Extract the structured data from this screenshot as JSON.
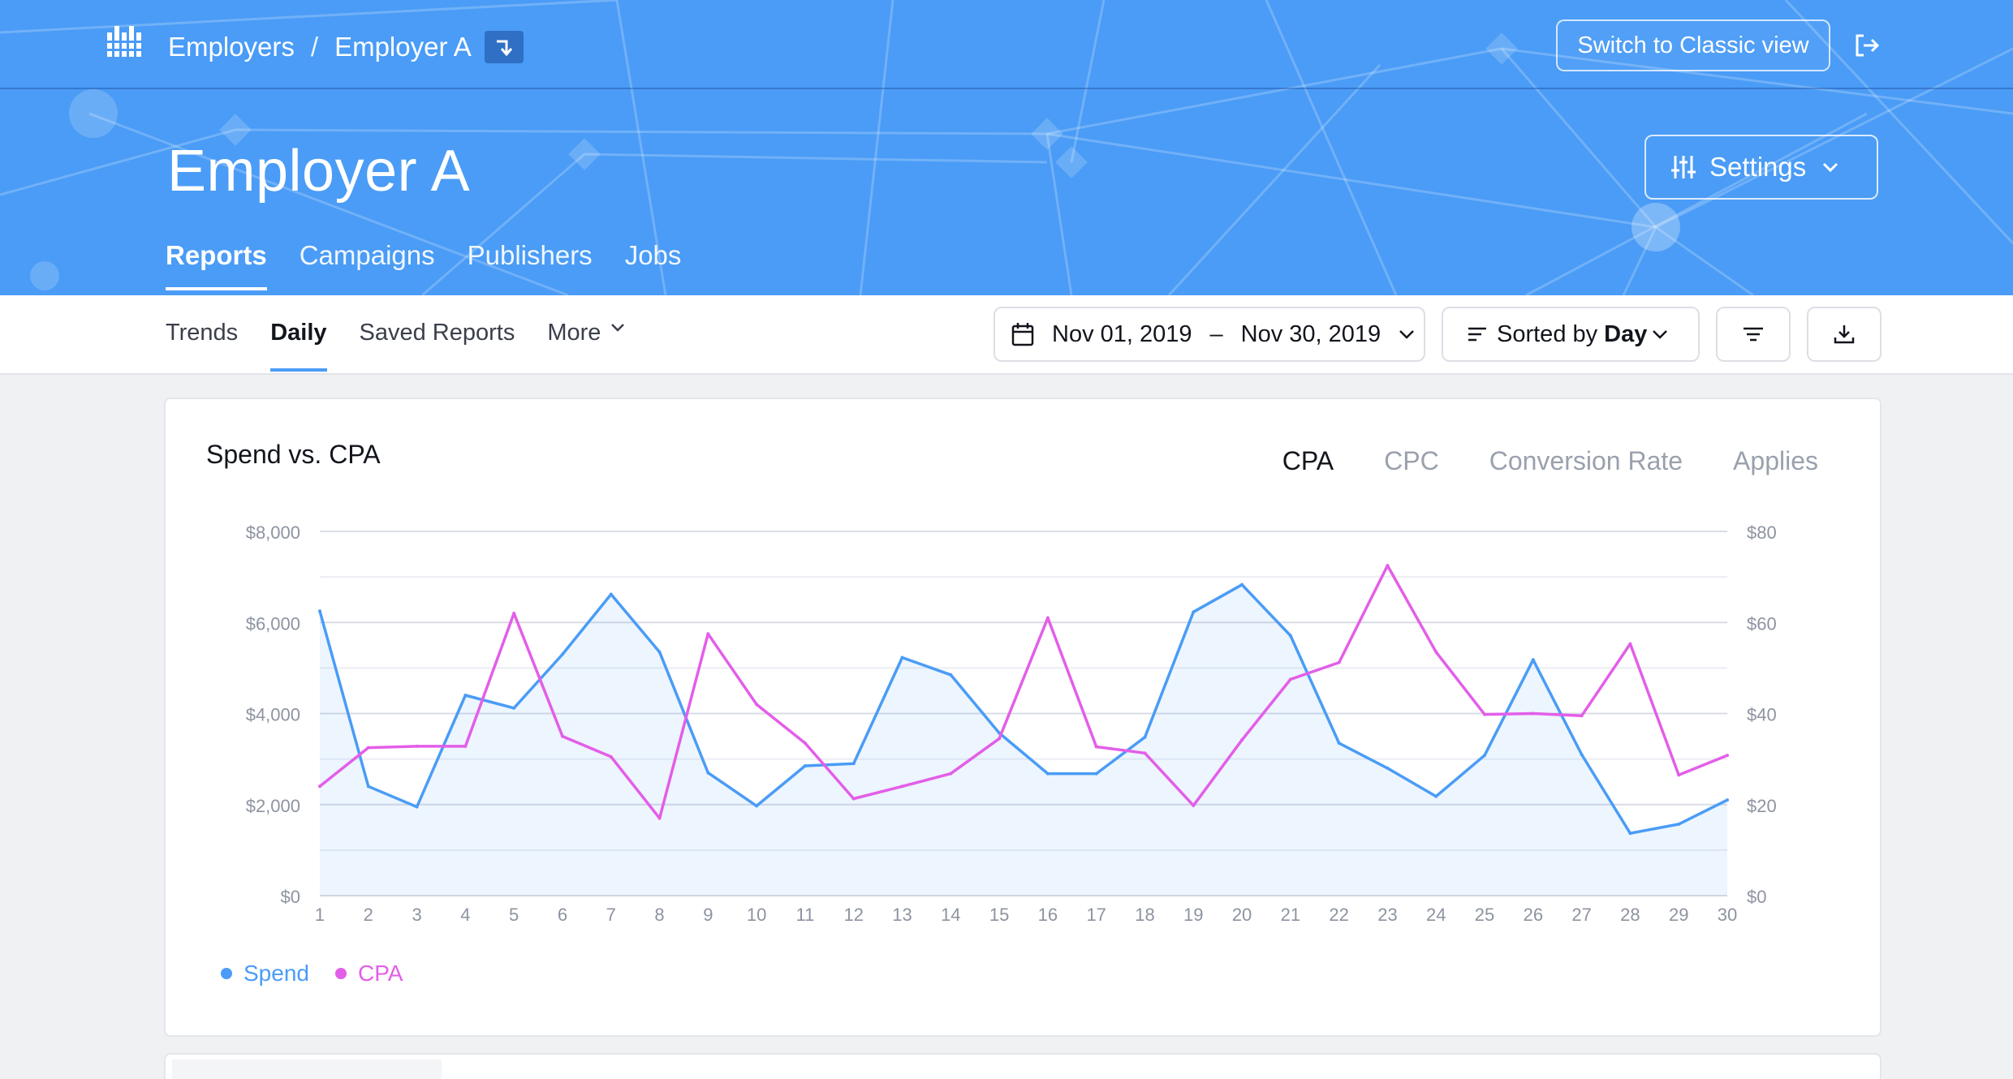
{
  "header": {
    "breadcrumbs": [
      "Employers",
      "Employer A"
    ],
    "breadcrumb_separator": "/",
    "switch_view_label": "Switch to Classic view",
    "page_title": "Employer A",
    "settings_label": "Settings",
    "nav_tabs": [
      {
        "label": "Reports",
        "active": true
      },
      {
        "label": "Campaigns",
        "active": false
      },
      {
        "label": "Publishers",
        "active": false
      },
      {
        "label": "Jobs",
        "active": false
      }
    ],
    "brand_color": "#4a9cf6"
  },
  "subnav": {
    "tabs": [
      {
        "label": "Trends",
        "active": false
      },
      {
        "label": "Daily",
        "active": true
      },
      {
        "label": "Saved Reports",
        "active": false
      },
      {
        "label": "More",
        "active": false
      }
    ],
    "date_start": "Nov 01, 2019",
    "date_end": "Nov 30, 2019",
    "date_dash": "–",
    "sort_prefix": "Sorted by",
    "sort_value": "Day"
  },
  "card": {
    "title": "Spend vs. CPA",
    "metric_tabs": [
      {
        "label": "CPA",
        "active": true
      },
      {
        "label": "CPC",
        "active": false
      },
      {
        "label": "Conversion Rate",
        "active": false
      },
      {
        "label": "Applies",
        "active": false
      }
    ]
  },
  "chart_data": {
    "type": "line",
    "title": "Spend vs. CPA",
    "x": [
      1,
      2,
      3,
      4,
      5,
      6,
      7,
      8,
      9,
      10,
      11,
      12,
      13,
      14,
      15,
      16,
      17,
      18,
      19,
      20,
      21,
      22,
      23,
      24,
      25,
      26,
      27,
      28,
      29,
      30
    ],
    "left_axis": {
      "ylim": [
        0,
        8000
      ],
      "ticks": [
        "$0",
        "$2,000",
        "$4,000",
        "$6,000",
        "$8,000"
      ]
    },
    "right_axis": {
      "ylim": [
        0,
        80
      ],
      "ticks": [
        "$0",
        "$20",
        "$40",
        "$60",
        "$80"
      ]
    },
    "series": [
      {
        "name": "Spend",
        "axis": "left",
        "color": "#4a9cf6",
        "area": true,
        "values": [
          6250,
          2400,
          1950,
          4400,
          4120,
          5300,
          6620,
          5350,
          2700,
          1970,
          2850,
          2900,
          5230,
          4850,
          3570,
          2680,
          2680,
          3480,
          6230,
          6830,
          5710,
          3350,
          2800,
          2180,
          3080,
          5180,
          3100,
          1370,
          1570,
          2100
        ]
      },
      {
        "name": "CPA",
        "axis": "right",
        "color": "#e35ee8",
        "area": false,
        "values": [
          24,
          32.5,
          32.8,
          32.8,
          62,
          35,
          30.5,
          17,
          57.5,
          42,
          33.5,
          21.3,
          24,
          26.8,
          34.5,
          61,
          32.7,
          31.3,
          19.8,
          34.2,
          47.5,
          51.2,
          72.5,
          53.5,
          39.8,
          40,
          39.5,
          55.3,
          26.5,
          30.8
        ]
      }
    ],
    "grid": true,
    "legend": "bottom-left"
  }
}
